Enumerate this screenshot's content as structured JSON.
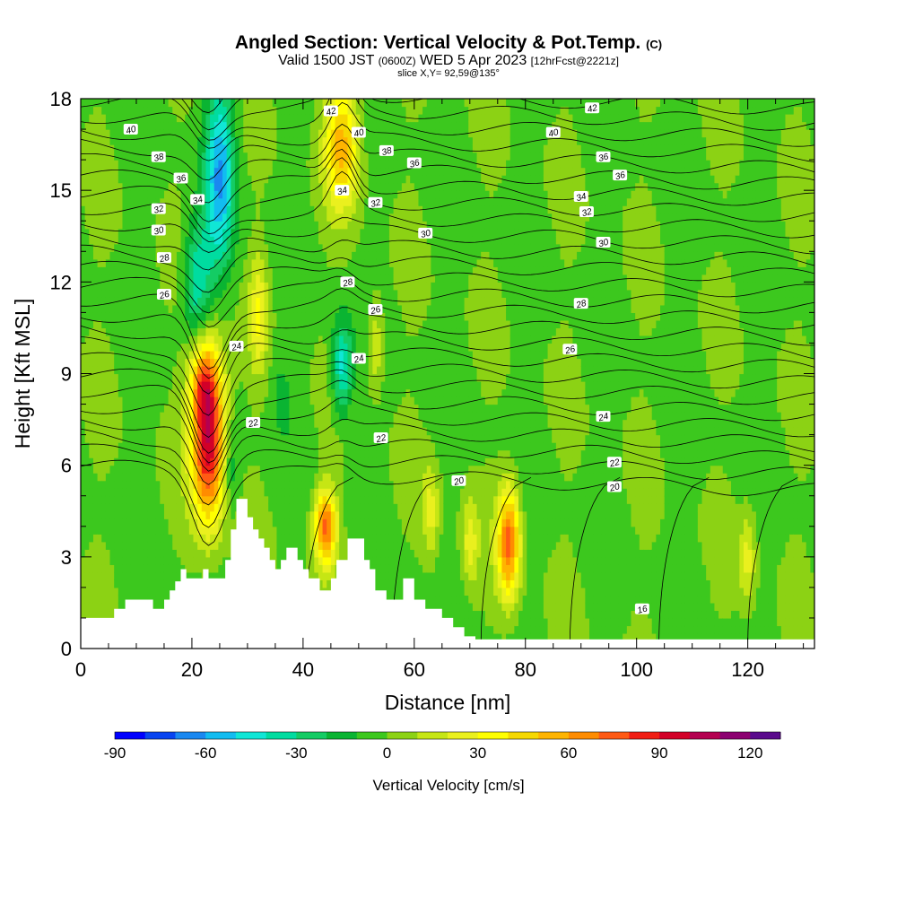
{
  "header": {
    "title": "Angled Section: Vertical Velocity & Pot.Temp.",
    "title_unit": "(C)",
    "valid_prefix": "Valid 1500 JST",
    "valid_utc": "(0600Z)",
    "valid_date": "WED 5 Apr 2023",
    "forecast_tag": "[12hrFcst@2221z]",
    "slice": "slice X,Y= 92,59@135°"
  },
  "chart_data": {
    "type": "heatmap",
    "xlabel": "Distance [nm]",
    "ylabel": "Height [Kft MSL]",
    "xlim": [
      0,
      132
    ],
    "ylim": [
      0,
      18
    ],
    "x_ticks": [
      "0",
      "20",
      "40",
      "60",
      "80",
      "100",
      "120"
    ],
    "y_ticks": [
      "0",
      "3",
      "6",
      "9",
      "12",
      "15",
      "18"
    ],
    "colorbar": {
      "label": "Vertical Velocity [cm/s]",
      "range": [
        -90,
        130
      ],
      "step": 10,
      "tick_labels": [
        "-90",
        "-60",
        "-30",
        "0",
        "30",
        "60",
        "90",
        "120"
      ],
      "colors": [
        "#0000ff",
        "#0844f0",
        "#1a88f0",
        "#12bcf0",
        "#10e6d6",
        "#00dca0",
        "#14cc64",
        "#0ab432",
        "#3cc81e",
        "#8cd214",
        "#c6e614",
        "#eaf01e",
        "#ffff00",
        "#f6d800",
        "#ffb400",
        "#ff8c00",
        "#ff5a14",
        "#f01e14",
        "#d20028",
        "#b40050",
        "#8c0070",
        "#5a0a8c"
      ]
    },
    "velocity_cells": [
      {
        "x": 23,
        "y": 7,
        "sx": 3,
        "sy": 2.8,
        "v": 105
      },
      {
        "x": 22,
        "y": 8.8,
        "sx": 2.5,
        "sy": 1.2,
        "v": 35
      },
      {
        "x": 44,
        "y": 4,
        "sx": 2,
        "sy": 1.2,
        "v": 75
      },
      {
        "x": 77,
        "y": 3.5,
        "sx": 2,
        "sy": 1.8,
        "v": 75
      },
      {
        "x": 47,
        "y": 16.5,
        "sx": 3,
        "sy": 2,
        "v": 55
      },
      {
        "x": 32,
        "y": 11,
        "sx": 1.5,
        "sy": 1.8,
        "v": 30
      },
      {
        "x": 53,
        "y": 10,
        "sx": 1.5,
        "sy": 1.5,
        "v": 25
      },
      {
        "x": 63,
        "y": 4.5,
        "sx": 1.5,
        "sy": 1.5,
        "v": 25
      },
      {
        "x": 70,
        "y": 3.5,
        "sx": 1.5,
        "sy": 1.5,
        "v": 25
      },
      {
        "x": 120,
        "y": 3,
        "sx": 1.5,
        "sy": 1.5,
        "v": 25
      },
      {
        "x": 25,
        "y": 15.5,
        "sx": 2.5,
        "sy": 3,
        "v": -55
      },
      {
        "x": 21,
        "y": 12,
        "sx": 2.5,
        "sy": 2,
        "v": -40
      },
      {
        "x": 47,
        "y": 9.2,
        "sx": 1.8,
        "sy": 1.5,
        "v": -45
      },
      {
        "x": 27,
        "y": 6,
        "sx": 1.5,
        "sy": 1.5,
        "v": -20
      },
      {
        "x": 36,
        "y": 8.5,
        "sx": 2,
        "sy": 1.5,
        "v": -10
      }
    ],
    "isentrope_labels": [
      {
        "text": "42",
        "x": 45,
        "y": 17.6
      },
      {
        "text": "40",
        "x": 50,
        "y": 16.9
      },
      {
        "text": "38",
        "x": 55,
        "y": 16.3
      },
      {
        "text": "36",
        "x": 60,
        "y": 15.9
      },
      {
        "text": "34",
        "x": 47,
        "y": 15.0
      },
      {
        "text": "32",
        "x": 53,
        "y": 14.6
      },
      {
        "text": "30",
        "x": 62,
        "y": 13.6
      },
      {
        "text": "28",
        "x": 48,
        "y": 12.0
      },
      {
        "text": "26",
        "x": 53,
        "y": 11.1
      },
      {
        "text": "24",
        "x": 50,
        "y": 9.5
      },
      {
        "text": "22",
        "x": 54,
        "y": 6.9
      },
      {
        "text": "20",
        "x": 68,
        "y": 5.5
      },
      {
        "text": "40",
        "x": 9,
        "y": 17.0
      },
      {
        "text": "38",
        "x": 14,
        "y": 16.1
      },
      {
        "text": "36",
        "x": 18,
        "y": 15.4
      },
      {
        "text": "32",
        "x": 14,
        "y": 14.4
      },
      {
        "text": "34",
        "x": 21,
        "y": 14.7
      },
      {
        "text": "30",
        "x": 14,
        "y": 13.7
      },
      {
        "text": "28",
        "x": 15,
        "y": 12.8
      },
      {
        "text": "26",
        "x": 15,
        "y": 11.6
      },
      {
        "text": "24",
        "x": 28,
        "y": 9.9
      },
      {
        "text": "22",
        "x": 31,
        "y": 7.4
      },
      {
        "text": "42",
        "x": 92,
        "y": 17.7
      },
      {
        "text": "40",
        "x": 85,
        "y": 16.9
      },
      {
        "text": "36",
        "x": 94,
        "y": 16.1
      },
      {
        "text": "36",
        "x": 97,
        "y": 15.5
      },
      {
        "text": "34",
        "x": 90,
        "y": 14.8
      },
      {
        "text": "32",
        "x": 91,
        "y": 14.3
      },
      {
        "text": "30",
        "x": 94,
        "y": 13.3
      },
      {
        "text": "28",
        "x": 90,
        "y": 11.3
      },
      {
        "text": "26",
        "x": 88,
        "y": 9.8
      },
      {
        "text": "24",
        "x": 94,
        "y": 7.6
      },
      {
        "text": "22",
        "x": 96,
        "y": 6.1
      },
      {
        "text": "20",
        "x": 96,
        "y": 5.3
      },
      {
        "text": "16",
        "x": 101,
        "y": 1.3
      }
    ],
    "terrain": [
      [
        0,
        1
      ],
      [
        6,
        1
      ],
      [
        6,
        1.3
      ],
      [
        8,
        1.3
      ],
      [
        8,
        1.6
      ],
      [
        13,
        1.6
      ],
      [
        13,
        1.3
      ],
      [
        15,
        1.3
      ],
      [
        15,
        1.6
      ],
      [
        16,
        1.6
      ],
      [
        16,
        1.9
      ],
      [
        17,
        1.9
      ],
      [
        17,
        2.2
      ],
      [
        18,
        2.2
      ],
      [
        18,
        2.6
      ],
      [
        19,
        2.6
      ],
      [
        19,
        2.3
      ],
      [
        22,
        2.3
      ],
      [
        22,
        2.6
      ],
      [
        23,
        2.6
      ],
      [
        23,
        2.3
      ],
      [
        26,
        2.3
      ],
      [
        26,
        2.9
      ],
      [
        27,
        2.9
      ],
      [
        27,
        3.9
      ],
      [
        28,
        3.9
      ],
      [
        28,
        4.9
      ],
      [
        30,
        4.9
      ],
      [
        30,
        4.3
      ],
      [
        31,
        4.3
      ],
      [
        31,
        3.9
      ],
      [
        32,
        3.9
      ],
      [
        32,
        3.6
      ],
      [
        33,
        3.6
      ],
      [
        33,
        3.3
      ],
      [
        34,
        3.3
      ],
      [
        34,
        2.9
      ],
      [
        35,
        2.9
      ],
      [
        35,
        2.6
      ],
      [
        36,
        2.6
      ],
      [
        36,
        2.9
      ],
      [
        37,
        2.9
      ],
      [
        37,
        3.3
      ],
      [
        39,
        3.3
      ],
      [
        39,
        2.9
      ],
      [
        40,
        2.9
      ],
      [
        40,
        2.6
      ],
      [
        41,
        2.6
      ],
      [
        41,
        2.3
      ],
      [
        43,
        2.3
      ],
      [
        43,
        1.9
      ],
      [
        45,
        1.9
      ],
      [
        45,
        2.3
      ],
      [
        46,
        2.3
      ],
      [
        46,
        2.9
      ],
      [
        48,
        2.9
      ],
      [
        48,
        3.6
      ],
      [
        51,
        3.6
      ],
      [
        51,
        2.9
      ],
      [
        52,
        2.9
      ],
      [
        52,
        2.6
      ],
      [
        53,
        2.6
      ],
      [
        53,
        1.9
      ],
      [
        55,
        1.9
      ],
      [
        55,
        1.6
      ],
      [
        58,
        1.6
      ],
      [
        58,
        2.3
      ],
      [
        60,
        2.3
      ],
      [
        60,
        1.6
      ],
      [
        62,
        1.6
      ],
      [
        62,
        1.3
      ],
      [
        65,
        1.3
      ],
      [
        65,
        1.0
      ],
      [
        67,
        1.0
      ],
      [
        67,
        0.7
      ],
      [
        69,
        0.7
      ],
      [
        69,
        0.4
      ],
      [
        71,
        0.4
      ],
      [
        71,
        0.3
      ],
      [
        132,
        0.3
      ]
    ]
  }
}
